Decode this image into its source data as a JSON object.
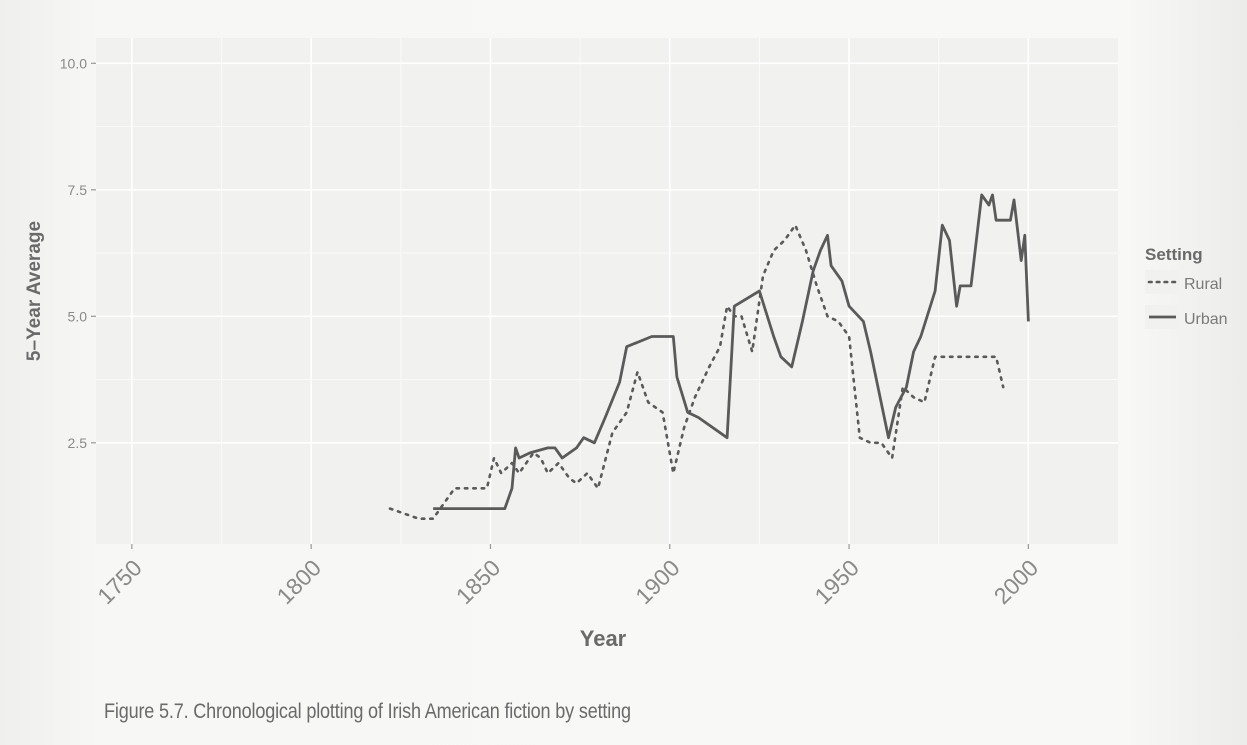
{
  "caption": "Figure 5.7. Chronological plotting of Irish American fiction by setting",
  "chart_data": {
    "type": "line",
    "xlabel": "Year",
    "ylabel": "5–Year Average",
    "xlim": [
      1740,
      2025
    ],
    "ylim": [
      0.5,
      10.5
    ],
    "x_ticks": [
      1750,
      1800,
      1850,
      1900,
      1950,
      2000
    ],
    "y_ticks": [
      2.5,
      5.0,
      7.5,
      10.0
    ],
    "grid": true,
    "legend": {
      "title": "Setting",
      "position": "right"
    },
    "colors": {
      "line": "#5a5a5a",
      "panel": "#f1f1ef",
      "grid": "#ffffff",
      "axis_text": "#8a8a8a",
      "title_text": "#6a6a6a"
    },
    "series": [
      {
        "name": "Rural",
        "style": "dotted",
        "x": [
          1822,
          1830,
          1834,
          1840,
          1843,
          1846,
          1849,
          1851,
          1853,
          1856,
          1858,
          1860,
          1862,
          1864,
          1866,
          1869,
          1872,
          1874,
          1877,
          1880,
          1884,
          1888,
          1891,
          1894,
          1898,
          1901,
          1904,
          1907,
          1911,
          1914,
          1916,
          1918,
          1920,
          1923,
          1926,
          1929,
          1932,
          1935,
          1938,
          1941,
          1944,
          1947,
          1950,
          1953,
          1956,
          1959,
          1962,
          1965,
          1968,
          1971,
          1974,
          1977,
          1980,
          1984,
          1988,
          1991,
          1993
        ],
        "y": [
          1.2,
          1.0,
          1.0,
          1.6,
          1.6,
          1.6,
          1.6,
          2.2,
          1.9,
          2.1,
          1.9,
          2.1,
          2.3,
          2.2,
          1.9,
          2.1,
          1.8,
          1.7,
          1.9,
          1.6,
          2.7,
          3.1,
          3.9,
          3.3,
          3.1,
          1.9,
          2.8,
          3.4,
          4.0,
          4.4,
          5.2,
          5.0,
          5.0,
          4.3,
          5.8,
          6.3,
          6.5,
          6.8,
          6.3,
          5.6,
          5.0,
          4.9,
          4.6,
          2.6,
          2.5,
          2.5,
          2.2,
          3.6,
          3.4,
          3.3,
          4.2,
          4.2,
          4.2,
          4.2,
          4.2,
          4.2,
          3.6
        ]
      },
      {
        "name": "Urban",
        "style": "solid",
        "x": [
          1834,
          1854,
          1856,
          1857,
          1858,
          1861,
          1866,
          1868,
          1870,
          1874,
          1876,
          1879,
          1882,
          1886,
          1888,
          1895,
          1901,
          1902,
          1905,
          1908,
          1916,
          1918,
          1925,
          1929,
          1931,
          1934,
          1937,
          1940,
          1942,
          1944,
          1945,
          1948,
          1950,
          1954,
          1956,
          1961,
          1963,
          1966,
          1968,
          1970,
          1974,
          1976,
          1978,
          1980,
          1981,
          1982,
          1984,
          1987,
          1989,
          1990,
          1991,
          1992,
          1995,
          1996,
          1998,
          1999,
          2000
        ],
        "y": [
          1.2,
          1.2,
          1.6,
          2.4,
          2.2,
          2.3,
          2.4,
          2.4,
          2.2,
          2.4,
          2.6,
          2.5,
          3.0,
          3.7,
          4.4,
          4.6,
          4.6,
          3.8,
          3.1,
          3.0,
          2.6,
          5.2,
          5.5,
          4.6,
          4.2,
          4.0,
          4.9,
          5.9,
          6.3,
          6.6,
          6.0,
          5.7,
          5.2,
          4.9,
          4.3,
          2.6,
          3.2,
          3.6,
          4.3,
          4.6,
          5.5,
          6.8,
          6.5,
          5.2,
          5.6,
          5.6,
          5.6,
          7.4,
          7.2,
          7.4,
          6.9,
          6.9,
          6.9,
          7.3,
          6.1,
          6.6,
          4.9
        ]
      }
    ]
  }
}
